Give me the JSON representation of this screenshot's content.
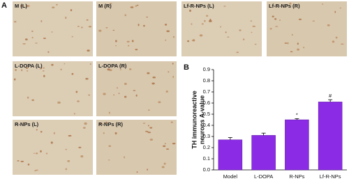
{
  "panel_a": {
    "label": "A",
    "images": [
      "M (L)",
      "M (R)",
      "Lf-R-NPs (L)",
      "Lf-R-NPs (R)",
      "L-DOPA (L)",
      "L-DOPA (R)",
      "R-NPs (L)",
      "R-NPs (R)"
    ]
  },
  "panel_b": {
    "label": "B"
  },
  "chart_data": {
    "type": "bar",
    "y_label": [
      "TH immunoreactive",
      "neurons A-value"
    ],
    "categories": [
      "Model",
      "L-DOPA",
      "R-NPs",
      "Lf-R-NPs"
    ],
    "values": [
      0.27,
      0.31,
      0.45,
      0.61
    ],
    "errors": [
      0.02,
      0.02,
      0.01,
      0.02
    ],
    "bar_labels": [
      null,
      null,
      "*",
      "#"
    ],
    "color": "#8b2be6",
    "ylim": [
      0,
      0.9
    ],
    "yticks": [
      {
        "value": 0,
        "label": "0.0"
      },
      0.1,
      0.2,
      0.3,
      0.4,
      0.5,
      0.6,
      0.7,
      0.8,
      0.9
    ]
  }
}
